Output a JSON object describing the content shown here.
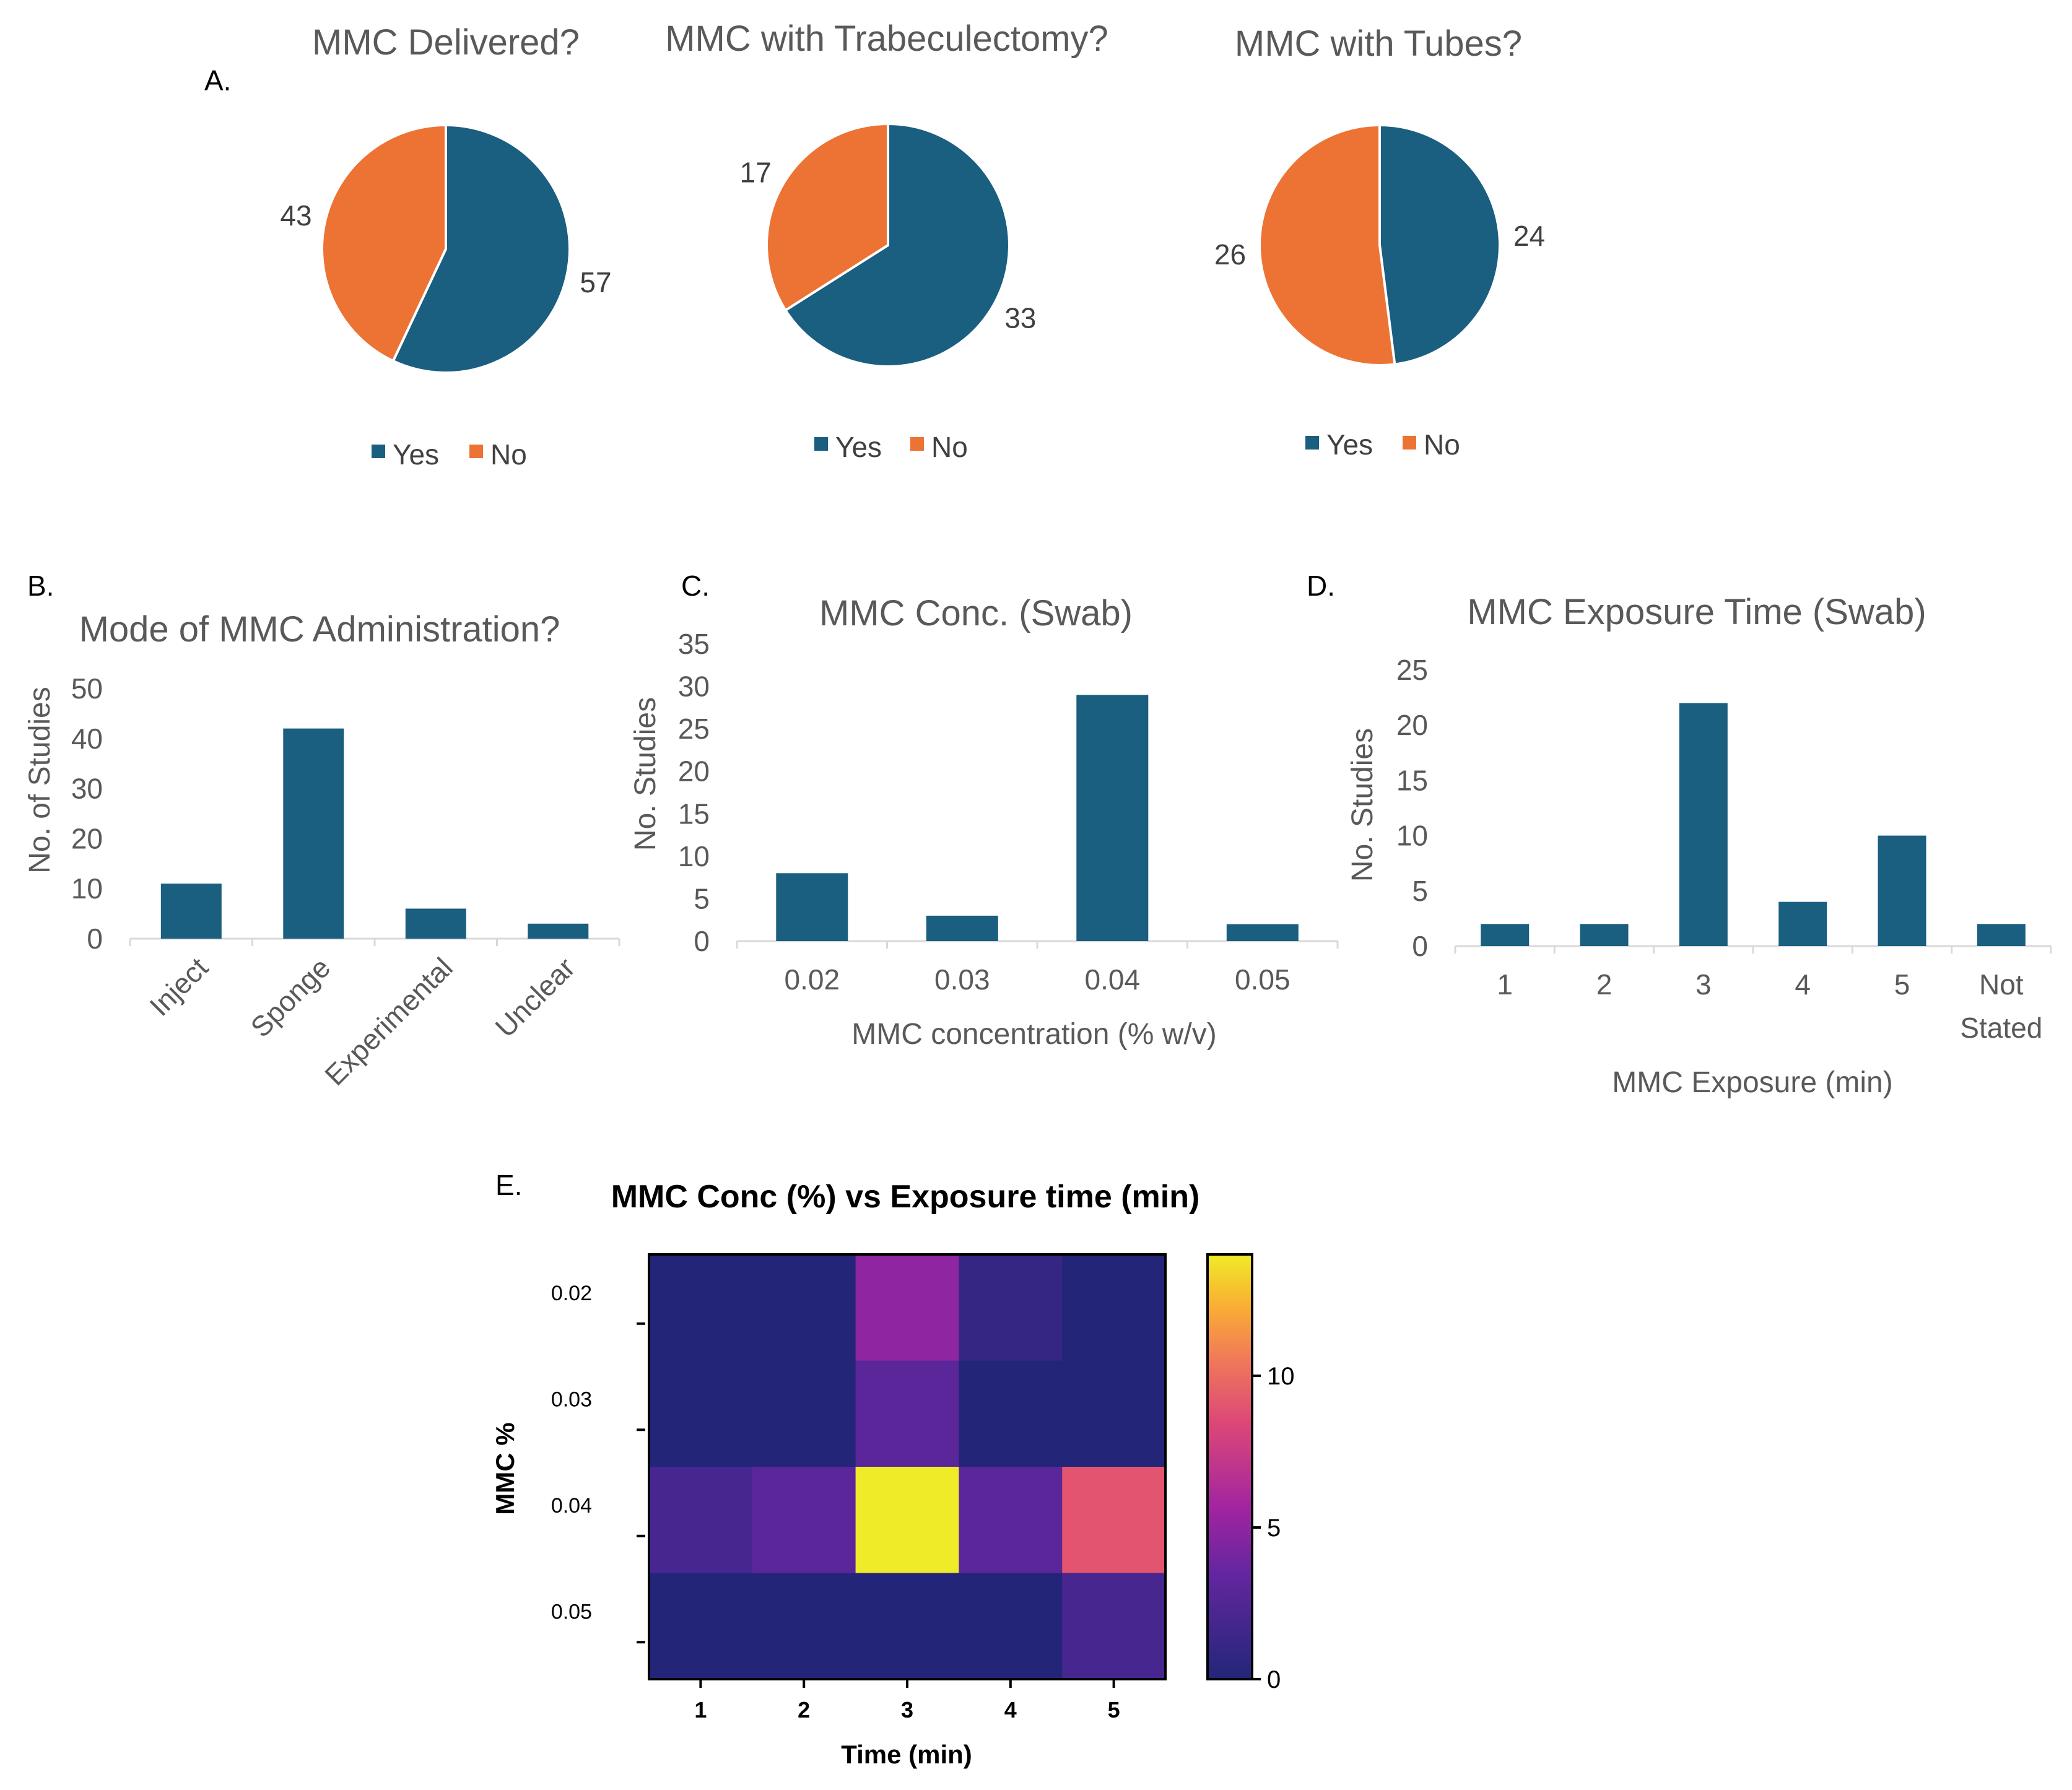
{
  "colors": {
    "yes": "#1a5e80",
    "no": "#ec7333",
    "bar": "#1a5e80",
    "axis": "#d9d9d9"
  },
  "panel_labels": {
    "a": "A.",
    "b": "B.",
    "c": "C.",
    "d": "D.",
    "e": "E."
  },
  "chart_data": [
    {
      "type": "pie",
      "title": "MMC Delivered?",
      "categories": [
        "Yes",
        "No"
      ],
      "values": [
        57,
        43
      ],
      "legend": "bottom"
    },
    {
      "type": "pie",
      "title": "MMC with Trabeculectomy?",
      "categories": [
        "Yes",
        "No"
      ],
      "values": [
        33,
        17
      ],
      "legend": "bottom"
    },
    {
      "type": "pie",
      "title": "MMC with Tubes?",
      "categories": [
        "Yes",
        "No"
      ],
      "values": [
        24,
        26
      ],
      "legend": "bottom"
    },
    {
      "type": "bar",
      "title": "Mode of MMC Administration?",
      "categories": [
        "Inject",
        "Sponge",
        "Experimental",
        "Unclear"
      ],
      "values": [
        11,
        42,
        6,
        3
      ],
      "xlabel": "",
      "ylabel": "No. of Studies",
      "ylim": [
        0,
        50
      ],
      "yticks": [
        0,
        10,
        20,
        30,
        40,
        50
      ]
    },
    {
      "type": "bar",
      "title": "MMC Conc. (Swab)",
      "categories": [
        "0.02",
        "0.03",
        "0.04",
        "0.05"
      ],
      "values": [
        8,
        3,
        29,
        2
      ],
      "xlabel": "MMC concentration (% w/v)",
      "ylabel": "No. Studies",
      "ylim": [
        0,
        35
      ],
      "yticks": [
        0,
        5,
        10,
        15,
        20,
        25,
        30,
        35
      ]
    },
    {
      "type": "bar",
      "title": "MMC Exposure Time (Swab)",
      "categories": [
        "1",
        "2",
        "3",
        "4",
        "5",
        "Not Stated"
      ],
      "values": [
        2,
        2,
        22,
        4,
        10,
        2
      ],
      "xlabel": "MMC Exposure (min)",
      "ylabel": "No. Studies",
      "ylim": [
        0,
        25
      ],
      "yticks": [
        0,
        5,
        10,
        15,
        20,
        25
      ]
    },
    {
      "type": "heatmap",
      "title": "MMC Conc (%) vs Exposure time (min)",
      "xlabel": "Time (min)",
      "ylabel": "MMC %",
      "x": [
        "1",
        "2",
        "3",
        "4",
        "5"
      ],
      "y": [
        "0.02",
        "0.03",
        "0.04",
        "0.05"
      ],
      "values": [
        [
          0,
          0,
          5,
          1,
          0
        ],
        [
          0,
          0,
          3,
          0,
          0
        ],
        [
          2,
          3,
          14,
          3,
          9
        ],
        [
          0,
          0,
          0,
          0,
          2
        ]
      ],
      "colormap": "plasma",
      "vmin": 0,
      "vmax": 14,
      "colorbar_ticks": [
        0,
        5,
        10
      ]
    }
  ]
}
